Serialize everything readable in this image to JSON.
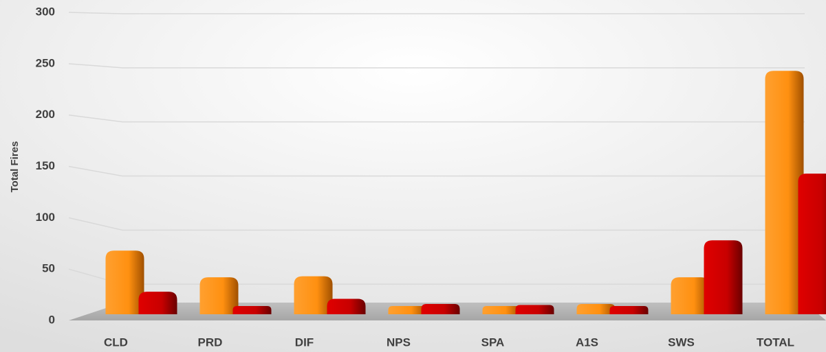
{
  "chart_data": {
    "type": "bar",
    "y_label": "Total Fires",
    "categories": [
      "CLD",
      "PRD",
      "DIF",
      "NPS",
      "SPA",
      "A1S",
      "SWS",
      "TOTAL"
    ],
    "series": [
      {
        "color": "#ff9215",
        "values": [
          62,
          36,
          37,
          8,
          8,
          10,
          36,
          237
        ]
      },
      {
        "color": "#d00000",
        "values": [
          22,
          8,
          15,
          10,
          9,
          8,
          72,
          137
        ]
      }
    ],
    "ylim": [
      0,
      300
    ],
    "yticks": [
      0,
      50,
      100,
      150,
      200,
      250,
      300
    ],
    "grid": true
  }
}
